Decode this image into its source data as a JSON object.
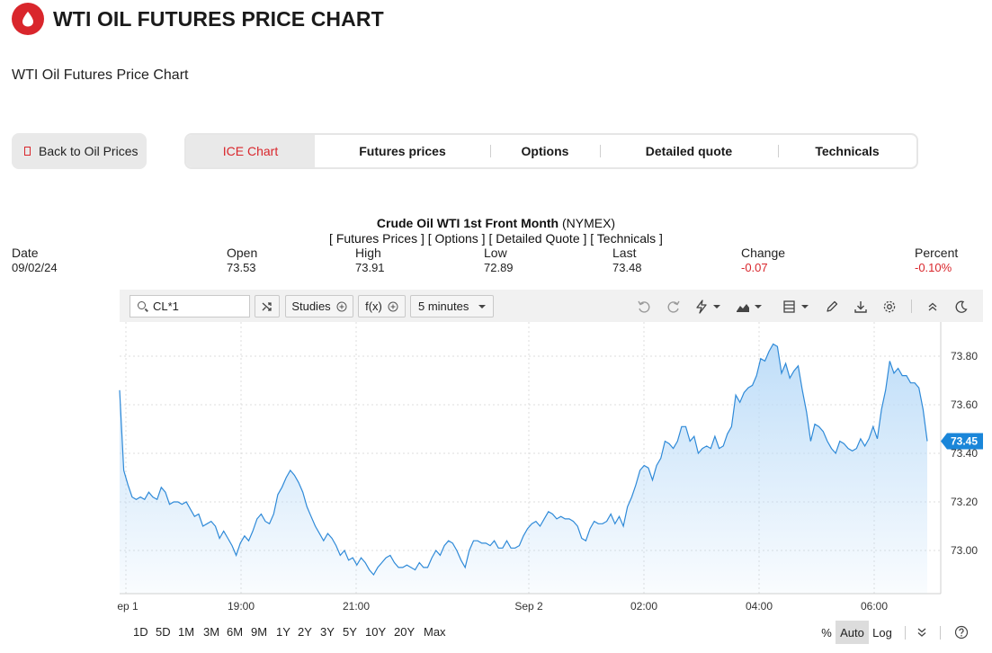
{
  "header": {
    "title": "WTI OIL FUTURES PRICE CHART",
    "subtitle": "WTI Oil Futures Price Chart",
    "brand_color": "#d9262c"
  },
  "nav": {
    "back_label": "Back to Oil Prices",
    "tabs": [
      {
        "label": "ICE Chart",
        "active": true
      },
      {
        "label": "Futures prices",
        "active": false
      },
      {
        "label": "Options",
        "active": false
      },
      {
        "label": "Detailed quote",
        "active": false
      },
      {
        "label": "Technicals",
        "active": false
      }
    ]
  },
  "quote": {
    "instrument": "Crude Oil WTI 1st Front Month",
    "exchange": "(NYMEX)",
    "links": "[ Futures Prices ] [ Options ] [ Detailed Quote ] [ Technicals ]",
    "labels": {
      "date": "Date",
      "open": "Open",
      "high": "High",
      "low": "Low",
      "last": "Last",
      "change": "Change",
      "percent": "Percent"
    },
    "values": {
      "date": "09/02/24",
      "open": "73.53",
      "high": "73.91",
      "low": "72.89",
      "last": "73.48",
      "change": "-0.07",
      "percent": "-0.10%"
    },
    "negative_color": "#d9262c"
  },
  "toolbar": {
    "symbol": "CL*1",
    "studies_label": "Studies",
    "fx_label": "f(x)",
    "interval_label": "5 minutes",
    "icons": [
      "undo-icon",
      "redo-icon",
      "events-icon",
      "chart-type-icon",
      "layout-icon",
      "draw-icon",
      "download-icon",
      "settings-icon",
      "collapse-icon",
      "dark-mode-icon"
    ]
  },
  "chart_data": {
    "type": "area",
    "x_tick_labels": [
      "ep 1",
      "19:00",
      "21:00",
      "Sep 2",
      "02:00",
      "04:00",
      "06:00"
    ],
    "y_tick_labels": [
      "73.80",
      "73.60",
      "73.40",
      "73.20",
      "73.00"
    ],
    "ylim": [
      72.86,
      73.96
    ],
    "last_value_label": "73.45",
    "grid": true,
    "line_color": "#2f8ad8",
    "fill_color": "#bcdcf8",
    "values": [
      73.66,
      73.33,
      73.27,
      73.22,
      73.21,
      73.22,
      73.21,
      73.24,
      73.22,
      73.21,
      73.26,
      73.24,
      73.19,
      73.2,
      73.2,
      73.19,
      73.2,
      73.17,
      73.14,
      73.15,
      73.1,
      73.11,
      73.12,
      73.1,
      73.05,
      73.08,
      73.05,
      73.02,
      72.98,
      73.03,
      73.06,
      73.04,
      73.08,
      73.13,
      73.15,
      73.12,
      73.11,
      73.15,
      73.23,
      73.26,
      73.3,
      73.33,
      73.31,
      73.28,
      73.24,
      73.18,
      73.14,
      73.1,
      73.07,
      73.04,
      73.07,
      73.05,
      73.02,
      72.98,
      73.0,
      72.96,
      72.97,
      72.94,
      72.97,
      72.95,
      72.92,
      72.9,
      72.93,
      72.95,
      72.97,
      72.98,
      72.95,
      72.93,
      72.93,
      72.94,
      72.93,
      72.92,
      72.95,
      72.93,
      72.93,
      72.97,
      73.0,
      72.98,
      73.02,
      73.04,
      73.03,
      73.0,
      72.96,
      72.93,
      73.0,
      73.04,
      73.04,
      73.03,
      73.03,
      73.02,
      73.04,
      73.01,
      73.01,
      73.04,
      73.01,
      73.01,
      73.02,
      73.06,
      73.09,
      73.11,
      73.12,
      73.1,
      73.13,
      73.16,
      73.15,
      73.13,
      73.14,
      73.13,
      73.13,
      73.12,
      73.1,
      73.05,
      73.04,
      73.09,
      73.12,
      73.11,
      73.11,
      73.12,
      73.15,
      73.11,
      73.14,
      73.1,
      73.18,
      73.22,
      73.27,
      73.33,
      73.35,
      73.34,
      73.29,
      73.35,
      73.38,
      73.45,
      73.44,
      73.42,
      73.45,
      73.51,
      73.51,
      73.45,
      73.47,
      73.4,
      73.42,
      73.43,
      73.42,
      73.47,
      73.42,
      73.43,
      73.48,
      73.51,
      73.64,
      73.61,
      73.65,
      73.67,
      73.68,
      73.72,
      73.79,
      73.78,
      73.82,
      73.85,
      73.84,
      73.73,
      73.77,
      73.71,
      73.74,
      73.76,
      73.66,
      73.57,
      73.45,
      73.52,
      73.51,
      73.49,
      73.45,
      73.42,
      73.4,
      73.45,
      73.44,
      73.42,
      73.41,
      73.42,
      73.46,
      73.43,
      73.46,
      73.51,
      73.46,
      73.58,
      73.66,
      73.78,
      73.73,
      73.75,
      73.72,
      73.72,
      73.69,
      73.69,
      73.67,
      73.58,
      73.45
    ]
  },
  "range_bar": {
    "ranges": [
      "1D",
      "5D",
      "1M",
      "3M",
      "6M",
      "9M",
      "1Y",
      "2Y",
      "3Y",
      "5Y",
      "10Y",
      "20Y",
      "Max"
    ],
    "scale_options": [
      "%",
      "Auto",
      "Log"
    ],
    "active_scale": "Auto"
  }
}
